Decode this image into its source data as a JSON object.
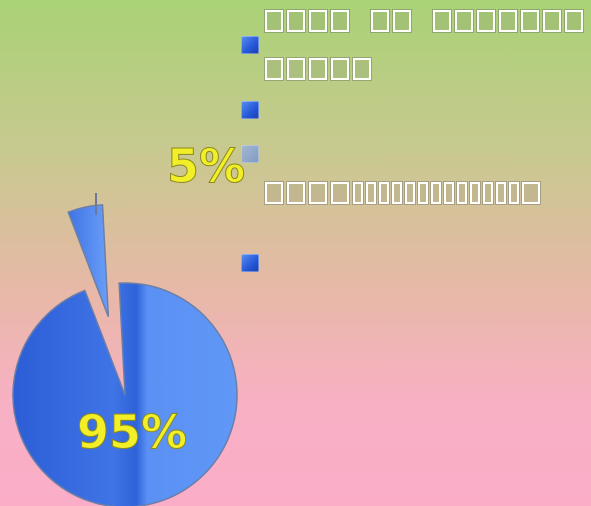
{
  "chart_data": {
    "type": "pie",
    "slices": [
      {
        "label": "95%",
        "value": 95,
        "color": "#4f84e8",
        "exploded": false
      },
      {
        "label": "5%",
        "value": 5,
        "color": "#5b8ff2",
        "exploded": true
      }
    ],
    "label_color": "#f2ee28"
  },
  "bullets": {
    "color": "#2a5fdc",
    "items": [
      {
        "kind": "unrendered-glyph-text"
      },
      {
        "kind": "empty"
      },
      {
        "kind": "unrendered-glyph-text"
      },
      {
        "kind": "empty"
      }
    ]
  }
}
